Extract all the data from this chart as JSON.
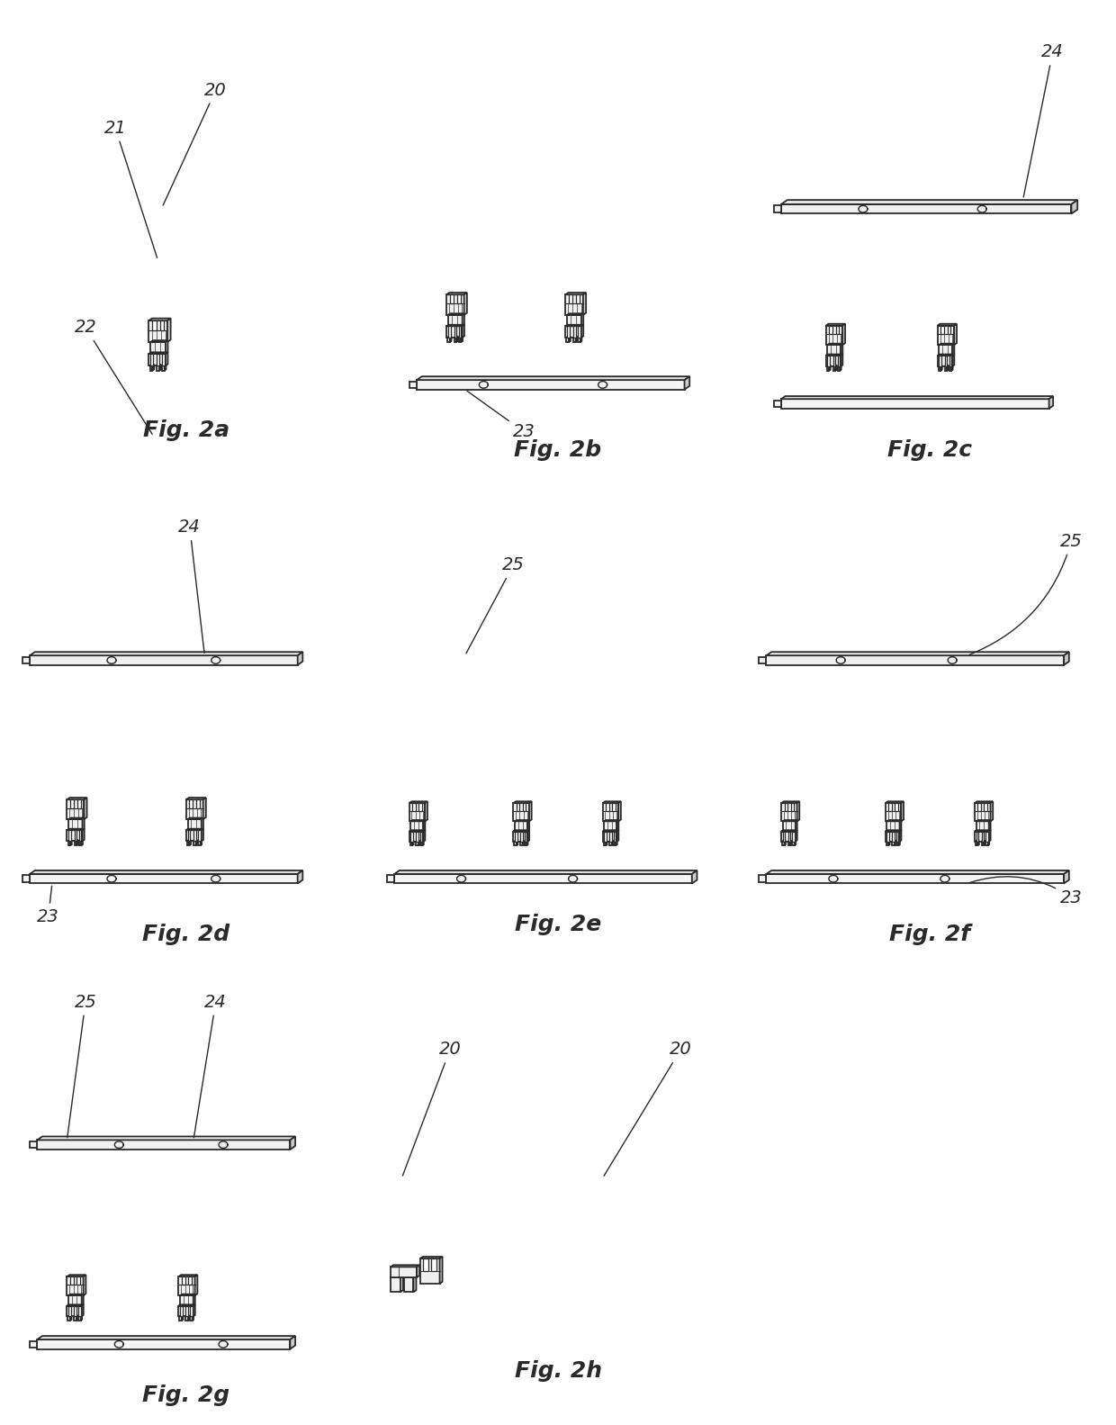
{
  "background_color": "#ffffff",
  "fig_width": 12.4,
  "fig_height": 15.83,
  "line_color": "#2a2a2a",
  "label_fontsize": 18,
  "annotation_fontsize": 15,
  "panels": [
    {
      "label": "Fig. 2a",
      "col": 0,
      "row": 0
    },
    {
      "label": "Fig. 2b",
      "col": 1,
      "row": 0
    },
    {
      "label": "Fig. 2c",
      "col": 2,
      "row": 0
    },
    {
      "label": "Fig. 2d",
      "col": 0,
      "row": 1
    },
    {
      "label": "Fig. 2e",
      "col": 1,
      "row": 1
    },
    {
      "label": "Fig. 2f",
      "col": 2,
      "row": 1
    },
    {
      "label": "Fig. 2g",
      "col": 0,
      "row": 2
    },
    {
      "label": "Fig. 2h",
      "col": 1,
      "row": 2
    }
  ]
}
